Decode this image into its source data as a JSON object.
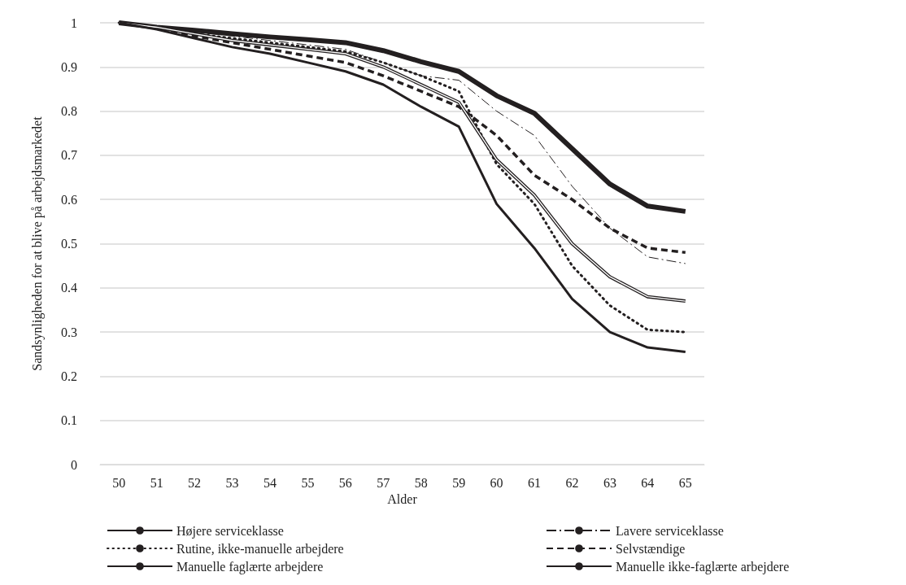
{
  "chart_data": {
    "type": "line",
    "xlabel": "Alder",
    "ylabel": "Sandsynligheden for at blive på arbejdsmarkedet",
    "categories": [
      "50",
      "51",
      "52",
      "53",
      "54",
      "55",
      "56",
      "57",
      "58",
      "59",
      "60",
      "61",
      "62",
      "63",
      "64",
      "65"
    ],
    "ylim": [
      0,
      1
    ],
    "yticks": [
      0,
      0.1,
      0.2,
      0.3,
      0.4,
      0.5,
      0.6,
      0.7,
      0.8,
      0.9,
      1
    ],
    "grid": "y",
    "legend": "bottom",
    "marker": "none",
    "series": [
      {
        "name": "Højere serviceklasse",
        "color": "#231f20",
        "line_style": "solid",
        "values": [
          1,
          0.99,
          0.983,
          0.975,
          0.968,
          0.962,
          0.955,
          0.937,
          0.912,
          0.89,
          0.835,
          0.795,
          0.715,
          0.635,
          0.585,
          0.573
        ]
      },
      {
        "name": "Lavere serviceklasse",
        "color": "#231f20",
        "line_style": "dashed",
        "values": [
          1,
          0.99,
          0.98,
          0.97,
          0.96,
          0.95,
          0.94,
          0.91,
          0.88,
          0.87,
          0.8,
          0.745,
          0.63,
          0.535,
          0.47,
          0.455
        ]
      },
      {
        "name": "Rutine, ikke-manuelle arbejdere",
        "color": "#231f20",
        "line_style": "dotted",
        "values": [
          1,
          0.99,
          0.975,
          0.965,
          0.955,
          0.945,
          0.935,
          0.91,
          0.88,
          0.845,
          0.68,
          0.59,
          0.45,
          0.36,
          0.305,
          0.3
        ]
      },
      {
        "name": "Selvstændige",
        "color": "#231f20",
        "line_style": "dashed",
        "values": [
          1,
          0.99,
          0.97,
          0.955,
          0.94,
          0.925,
          0.91,
          0.88,
          0.845,
          0.81,
          0.745,
          0.655,
          0.6,
          0.535,
          0.49,
          0.48
        ]
      },
      {
        "name": "Manuelle faglærte arbejdere",
        "color": "#231f20",
        "line_style": "solid",
        "values": [
          1,
          0.99,
          0.975,
          0.96,
          0.95,
          0.94,
          0.93,
          0.9,
          0.86,
          0.82,
          0.69,
          0.61,
          0.5,
          0.425,
          0.38,
          0.37
        ]
      },
      {
        "name": "Manuelle ikke-faglærte arbejdere",
        "color": "#231f20",
        "line_style": "solid",
        "values": [
          1,
          0.985,
          0.965,
          0.945,
          0.93,
          0.91,
          0.89,
          0.86,
          0.81,
          0.765,
          0.59,
          0.49,
          0.375,
          0.3,
          0.265,
          0.255
        ]
      }
    ]
  }
}
